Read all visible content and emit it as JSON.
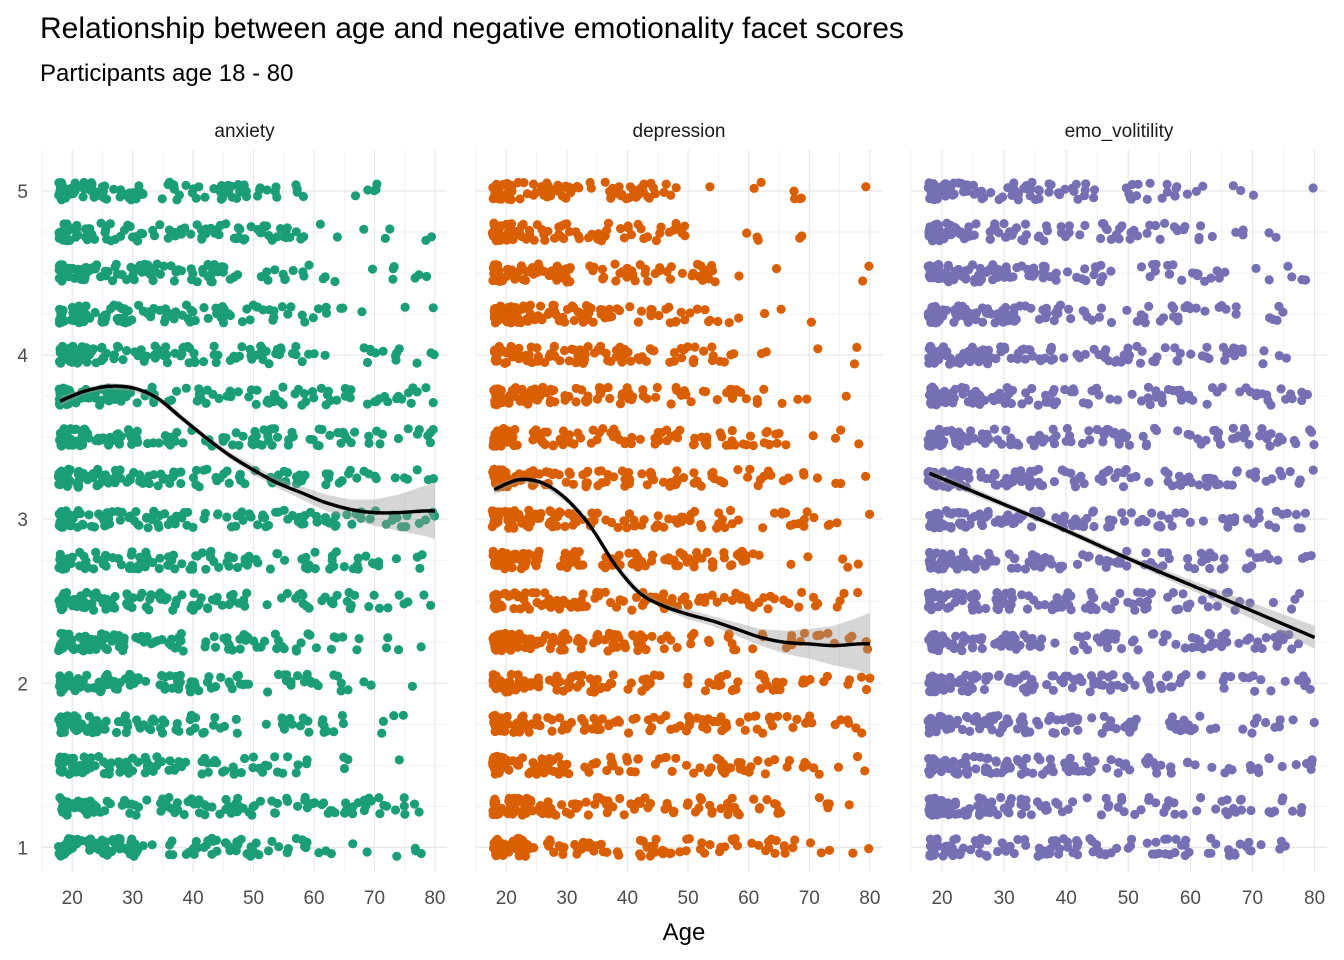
{
  "title": "Relationship between age and negative emotionality facet scores",
  "subtitle": "Participants age 18 - 80",
  "chart_data": {
    "type": "scatter",
    "title": "Relationship between age and negative emotionality facet scores",
    "subtitle": "Participants age 18 - 80",
    "xlabel": "Age",
    "ylabel": "",
    "xlim": [
      15,
      82
    ],
    "ylim": [
      0.85,
      5.25
    ],
    "x_ticks": [
      20,
      30,
      40,
      50,
      60,
      70,
      80
    ],
    "y_ticks": [
      1,
      2,
      3,
      4,
      5
    ],
    "y_levels": [
      1,
      1.25,
      1.5,
      1.75,
      2,
      2.25,
      2.5,
      2.75,
      3,
      3.25,
      3.5,
      3.75,
      4,
      4.25,
      4.5,
      4.75,
      5
    ],
    "grid": true,
    "facets": [
      {
        "name": "anxiety",
        "color": "#1b9e77",
        "density_max_age": [
          70,
          72,
          60,
          62,
          66,
          67,
          69,
          72,
          74,
          75,
          77,
          74,
          71,
          62,
          63,
          62,
          58
        ],
        "smooth": {
          "x": [
            18,
            22,
            26,
            30,
            34,
            38,
            42,
            46,
            50,
            54,
            58,
            62,
            66,
            70,
            74,
            78,
            80
          ],
          "y": [
            3.72,
            3.78,
            3.81,
            3.8,
            3.74,
            3.62,
            3.5,
            3.39,
            3.3,
            3.22,
            3.16,
            3.1,
            3.06,
            3.04,
            3.04,
            3.05,
            3.05
          ],
          "se": [
            0.03,
            0.02,
            0.02,
            0.02,
            0.02,
            0.02,
            0.02,
            0.02,
            0.03,
            0.03,
            0.04,
            0.05,
            0.06,
            0.08,
            0.11,
            0.15,
            0.17
          ]
        }
      },
      {
        "name": "depression",
        "color": "#d95f02",
        "density_max_age": [
          68,
          70,
          70,
          70,
          71,
          69,
          71,
          68,
          69,
          70,
          66,
          65,
          58,
          56,
          55,
          50,
          48
        ],
        "smooth": {
          "x": [
            18,
            22,
            26,
            30,
            34,
            38,
            42,
            46,
            50,
            54,
            58,
            62,
            66,
            70,
            74,
            78,
            80
          ],
          "y": [
            3.18,
            3.24,
            3.22,
            3.12,
            2.95,
            2.72,
            2.55,
            2.47,
            2.42,
            2.38,
            2.33,
            2.28,
            2.25,
            2.24,
            2.23,
            2.24,
            2.24
          ],
          "se": [
            0.03,
            0.02,
            0.02,
            0.02,
            0.02,
            0.02,
            0.02,
            0.02,
            0.03,
            0.03,
            0.04,
            0.05,
            0.07,
            0.09,
            0.12,
            0.16,
            0.19
          ]
        }
      },
      {
        "name": "emo_volitility",
        "color": "#7570b3",
        "density_max_age": [
          70,
          72,
          72,
          72,
          74,
          74,
          73,
          74,
          74,
          74,
          73,
          75,
          70,
          68,
          66,
          62,
          62
        ],
        "smooth": {
          "x": [
            18,
            30,
            40,
            50,
            60,
            70,
            80
          ],
          "y": [
            3.28,
            3.09,
            2.93,
            2.76,
            2.6,
            2.44,
            2.28
          ],
          "se": [
            0.03,
            0.02,
            0.02,
            0.02,
            0.03,
            0.05,
            0.07
          ]
        }
      }
    ]
  }
}
